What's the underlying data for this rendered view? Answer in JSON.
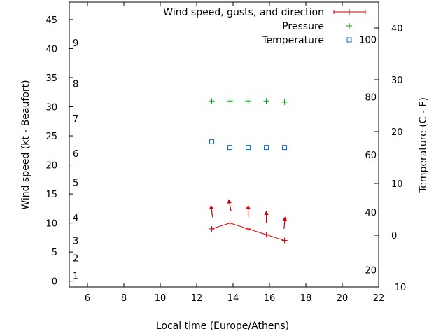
{
  "chart_data": {
    "type": "line",
    "xlabel": "Local time (Europe/Athens)",
    "ylabel_left": "Wind speed (kt - Beaufort)",
    "ylabel_right": "Temperature (C - F)",
    "xlim": [
      5,
      22
    ],
    "ylim_left": [
      -1,
      48
    ],
    "ylim_right_c": [
      -10,
      45
    ],
    "x_ticks": [
      6,
      8,
      10,
      12,
      14,
      16,
      18,
      20,
      22
    ],
    "y_left_ticks": [
      0,
      5,
      10,
      15,
      20,
      25,
      30,
      35,
      40,
      45
    ],
    "y_right_c_ticks": [
      -10,
      0,
      10,
      20,
      30,
      40
    ],
    "y_right_f_ticks": [
      20,
      40,
      60,
      80,
      100
    ],
    "beaufort_scale": [
      {
        "level": "1",
        "kt": 1
      },
      {
        "level": "2",
        "kt": 4
      },
      {
        "level": "3",
        "kt": 7
      },
      {
        "level": "4",
        "kt": 11
      },
      {
        "level": "5",
        "kt": 17
      },
      {
        "level": "6",
        "kt": 22
      },
      {
        "level": "7",
        "kt": 28
      },
      {
        "level": "8",
        "kt": 34
      },
      {
        "level": "9",
        "kt": 41
      }
    ],
    "legend": [
      {
        "label": "Wind speed, gusts, and direction",
        "color": "#cc0000",
        "marker": "line-plus"
      },
      {
        "label": "Pressure",
        "color": "#00aa00",
        "marker": "plus"
      },
      {
        "label": "Temperature",
        "color": "#0066cc",
        "marker": "square"
      }
    ],
    "series": [
      {
        "name": "Wind speed, gusts, and direction",
        "color": "#cc0000",
        "x": [
          12.83,
          13.83,
          14.83,
          15.83,
          16.83
        ],
        "wind": [
          9,
          10,
          9,
          8,
          7
        ],
        "gusts": [
          13,
          14,
          13,
          12,
          11
        ],
        "direction_arrow_dx_kt": [
          -0.3,
          -0.4,
          0,
          0,
          0.2
        ]
      },
      {
        "name": "Pressure",
        "color": "#00aa00",
        "x": [
          12.83,
          13.83,
          14.83,
          15.83,
          16.83
        ],
        "y": [
          31,
          31,
          31,
          31,
          30.8
        ]
      },
      {
        "name": "Temperature",
        "color": "#0066cc",
        "x": [
          12.83,
          13.83,
          14.83,
          15.83,
          16.83
        ],
        "y": [
          24,
          23,
          23,
          23,
          23
        ]
      }
    ]
  }
}
